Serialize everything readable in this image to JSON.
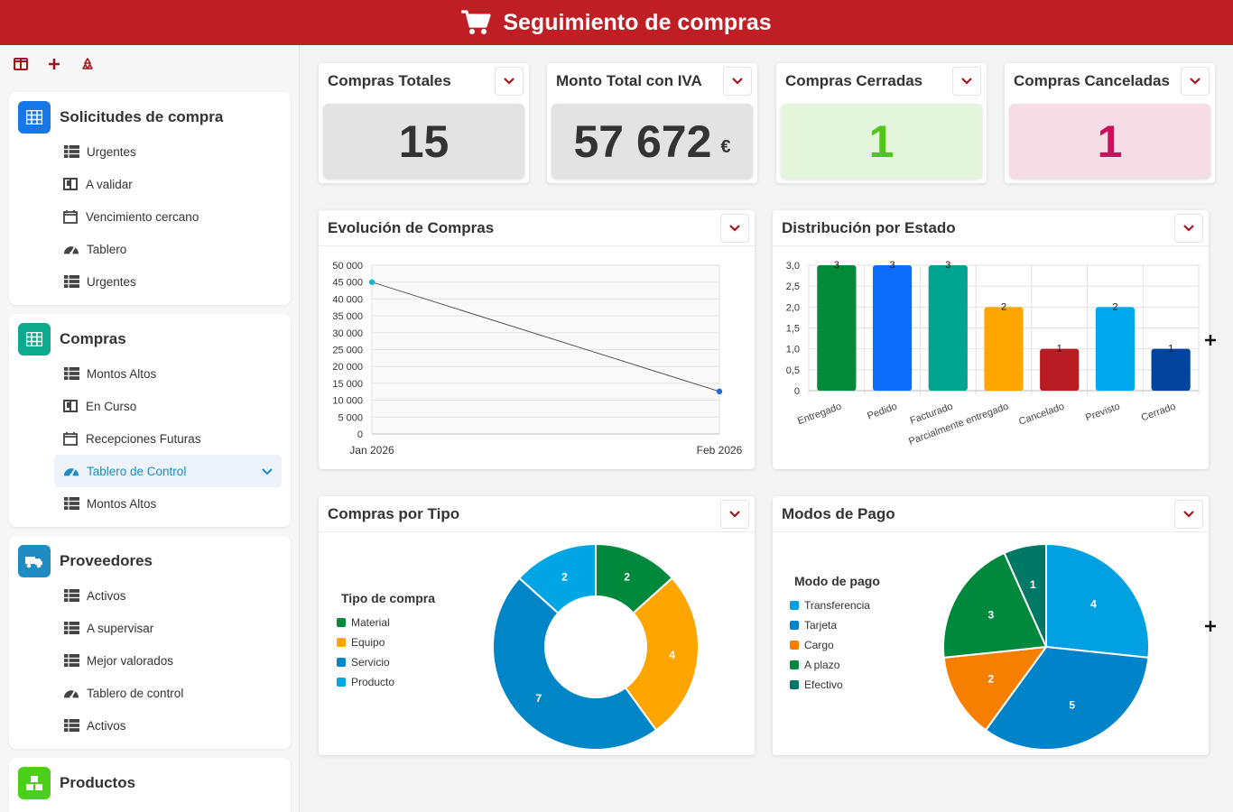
{
  "header": {
    "title": "Seguimiento de compras",
    "icon": "shopping-cart-icon"
  },
  "colors": {
    "header_bg": "#bf1f24",
    "accent_blue": "#1e8bc3"
  },
  "sidebar": {
    "toolbar": [
      "layout-icon",
      "plus-icon",
      "recycle-icon"
    ],
    "groups": [
      {
        "title": "Solicitudes de compra",
        "icon": "grid-icon",
        "color": "#1877e6",
        "items": [
          {
            "label": "Urgentes",
            "icon": "table-icon"
          },
          {
            "label": "A validar",
            "icon": "kanban-icon"
          },
          {
            "label": "Vencimiento cercano",
            "icon": "calendar-icon"
          },
          {
            "label": "Tablero",
            "icon": "dashboard-icon"
          },
          {
            "label": "Urgentes",
            "icon": "table-icon"
          }
        ]
      },
      {
        "title": "Compras",
        "icon": "grid-icon",
        "color": "#0eaa8e",
        "items": [
          {
            "label": "Montos Altos",
            "icon": "table-icon"
          },
          {
            "label": "En Curso",
            "icon": "kanban-icon"
          },
          {
            "label": "Recepciones Futuras",
            "icon": "calendar-icon"
          },
          {
            "label": "Tablero de Control",
            "icon": "dashboard-icon"
          },
          {
            "label": "Montos Altos",
            "icon": "table-icon"
          }
        ]
      },
      {
        "title": "Proveedores",
        "icon": "truck-icon",
        "color": "#1e8bc3",
        "items": [
          {
            "label": "Activos",
            "icon": "table-icon"
          },
          {
            "label": "A supervisar",
            "icon": "table-icon"
          },
          {
            "label": "Mejor valorados",
            "icon": "table-icon"
          },
          {
            "label": "Tablero de control",
            "icon": "dashboard-icon"
          },
          {
            "label": "Activos",
            "icon": "table-icon"
          }
        ]
      },
      {
        "title": "Productos",
        "icon": "boxes-icon",
        "color": "#4ccf1b",
        "items": []
      }
    ]
  },
  "kpis": [
    {
      "title": "Compras Totales",
      "value": "15",
      "unit": "",
      "bg": "#e3e3e3",
      "fg": "#333333"
    },
    {
      "title": "Monto Total con IVA",
      "value": "57 672",
      "unit": "€",
      "bg": "#e3e3e3",
      "fg": "#333333"
    },
    {
      "title": "Compras Cerradas",
      "value": "1",
      "unit": "",
      "bg": "#e3f6dc",
      "fg": "#52c41a"
    },
    {
      "title": "Compras Canceladas",
      "value": "1",
      "unit": "",
      "bg": "#f6dde5",
      "fg": "#cc0e5c"
    }
  ],
  "charts": {
    "evolution_title": "Evolución de Compras",
    "status_title": "Distribución por Estado",
    "type_title": "Compras por Tipo",
    "payment_title": "Modos de Pago"
  },
  "chart_data": [
    {
      "type": "line",
      "title": "Evolución de Compras",
      "x": [
        "Jan 2026",
        "Feb 2026"
      ],
      "series": [
        {
          "values": [
            45000,
            12600
          ]
        }
      ],
      "yticks": [
        "0",
        "5 000",
        "10 000",
        "15 000",
        "20 000",
        "25 000",
        "30 000",
        "35 000",
        "40 000",
        "45 000",
        "50 000"
      ],
      "ylim": [
        0,
        50000
      ],
      "grid": true
    },
    {
      "type": "bar",
      "title": "Distribución por Estado",
      "categories": [
        "Entregado",
        "Pedido",
        "Facturado",
        "Parcialmente entregado",
        "Cancelado",
        "Previsto",
        "Cerrado"
      ],
      "values": [
        3,
        3,
        3,
        2,
        1,
        2,
        1
      ],
      "labels": [
        "3",
        "3",
        "3",
        "2",
        "1",
        "2",
        "1"
      ],
      "colors": [
        "#008a3a",
        "#0d6efd",
        "#00a591",
        "#ffa600",
        "#b81d24",
        "#00a8ee",
        "#00449e"
      ],
      "yticks": [
        "0",
        "0,5",
        "1,0",
        "1,5",
        "2,0",
        "2,5",
        "3,0"
      ],
      "ylim": [
        0,
        3
      ],
      "grid": true
    },
    {
      "type": "pie",
      "title": "Compras por Tipo",
      "legend_title": "Tipo de compra",
      "legend": "left",
      "slices": [
        {
          "name": "Material",
          "value": 2,
          "label": "2",
          "color": "#00893d"
        },
        {
          "name": "Equipo",
          "value": 4,
          "label": "4",
          "color": "#ffa500"
        },
        {
          "name": "Servicio",
          "value": 7,
          "label": "7",
          "color": "#0086c7"
        },
        {
          "name": "Producto",
          "value": 2,
          "label": "2",
          "color": "#00a6e3"
        }
      ]
    },
    {
      "type": "pie",
      "title": "Modos de Pago",
      "legend_title": "Modo de pago",
      "legend": "left",
      "slices": [
        {
          "name": "Transferencia",
          "value": 4,
          "label": "4",
          "color": "#00a0e3"
        },
        {
          "name": "Tarjeta",
          "value": 5,
          "label": "5",
          "color": "#0083c9"
        },
        {
          "name": "Cargo",
          "value": 2,
          "label": "2",
          "color": "#f77f00"
        },
        {
          "name": "A plazo",
          "value": 3,
          "label": "3",
          "color": "#00893d"
        },
        {
          "name": "Efectivo",
          "value": 1,
          "label": "1",
          "color": "#007866"
        }
      ]
    }
  ]
}
